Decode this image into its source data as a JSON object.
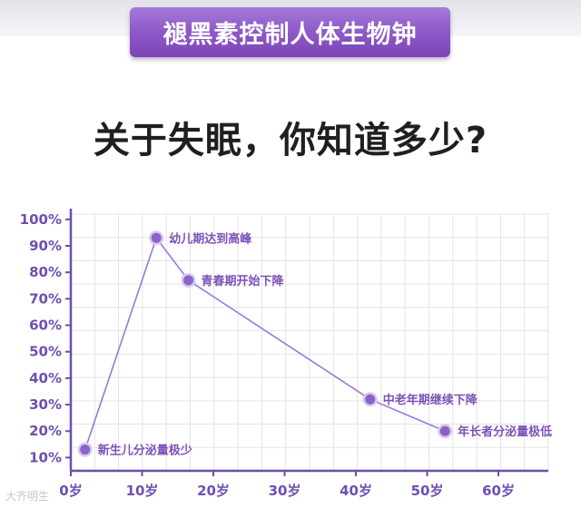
{
  "banner": {
    "title": "褪黑素控制人体生物钟"
  },
  "headline": "关于失眠，你知道多少?",
  "watermark": "大齐明生",
  "chart_data": {
    "type": "line",
    "title": "",
    "xlabel": "",
    "ylabel": "",
    "x_ticks": [
      {
        "value": 0,
        "label": "0岁"
      },
      {
        "value": 10,
        "label": "10岁"
      },
      {
        "value": 20,
        "label": "20岁"
      },
      {
        "value": 30,
        "label": "30岁"
      },
      {
        "value": 40,
        "label": "40岁"
      },
      {
        "value": 50,
        "label": "50岁"
      },
      {
        "value": 60,
        "label": "60岁"
      }
    ],
    "y_ticks": [
      {
        "value": 10,
        "label": "10%"
      },
      {
        "value": 20,
        "label": "20%"
      },
      {
        "value": 30,
        "label": "30%"
      },
      {
        "value": 40,
        "label": "40%"
      },
      {
        "value": 50,
        "label": "50%"
      },
      {
        "value": 60,
        "label": "60%"
      },
      {
        "value": 70,
        "label": "70%"
      },
      {
        "value": 80,
        "label": "80%"
      },
      {
        "value": 90,
        "label": "90%"
      },
      {
        "value": 100,
        "label": "100%"
      }
    ],
    "xlim": [
      0,
      67
    ],
    "ylim": [
      5,
      102
    ],
    "grid": true,
    "colors": {
      "line": "#9a78d6",
      "point": "#8a63c8",
      "point_halo": "#d8c8f0",
      "annotation": "#7d52b8",
      "axis": "#6b4fa8",
      "grid": "#e3e3e6",
      "tick_label": "#6f4fb0"
    },
    "series": [
      {
        "x": [
          2,
          12,
          16.5,
          42,
          52.5
        ],
        "y": [
          13,
          93,
          77,
          32,
          20
        ],
        "annotations": [
          "新生儿分泌量极少",
          "幼儿期达到高峰",
          "青春期开始下降",
          "中老年期继续下降",
          "年长者分泌量极低"
        ]
      }
    ]
  }
}
